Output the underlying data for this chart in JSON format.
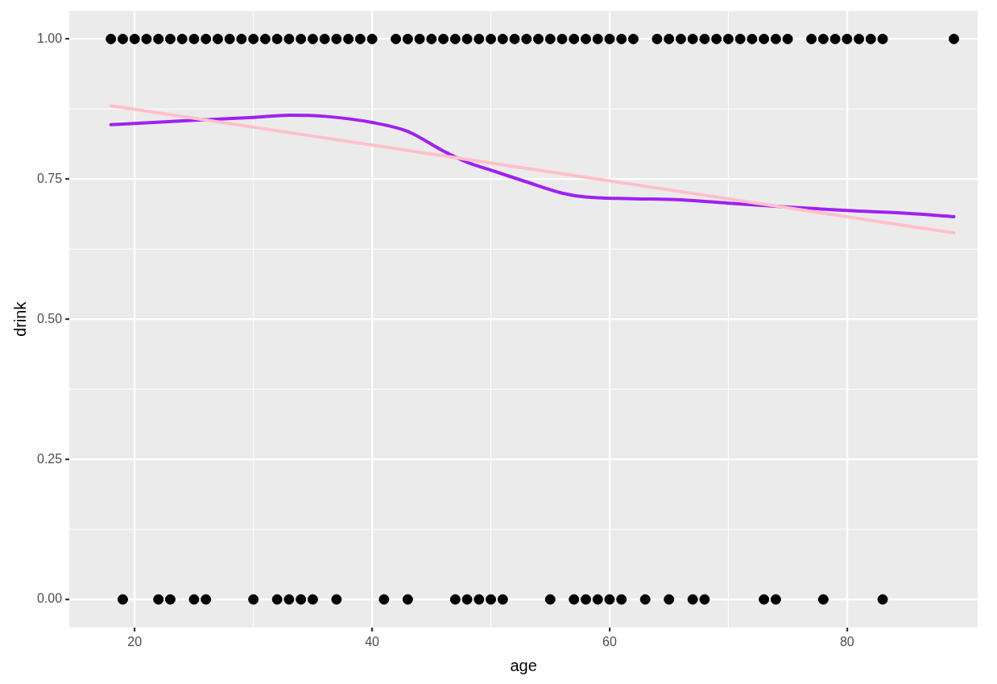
{
  "chart_data": {
    "type": "scatter",
    "xlabel": "age",
    "ylabel": "drink",
    "xlim": [
      14.5,
      91
    ],
    "ylim": [
      -0.05,
      1.05
    ],
    "xticks": [
      20,
      40,
      60,
      80
    ],
    "yticks": [
      {
        "value": 0,
        "label": "0.00"
      },
      {
        "value": 0.25,
        "label": "0.25"
      },
      {
        "value": 0.5,
        "label": "0.50"
      },
      {
        "value": 0.75,
        "label": "0.75"
      },
      {
        "value": 1,
        "label": "1.00"
      }
    ],
    "grid": true,
    "legend": false,
    "marker": "circle",
    "series": [
      {
        "type": "scatter",
        "color": "#000000",
        "x": [
          18,
          19,
          20,
          21,
          22,
          23,
          24,
          25,
          26,
          27,
          28,
          29,
          30,
          31,
          32,
          33,
          34,
          35,
          36,
          37,
          38,
          39,
          40,
          42,
          43,
          44,
          45,
          46,
          47,
          48,
          49,
          50,
          51,
          52,
          53,
          54,
          55,
          56,
          57,
          58,
          59,
          60,
          61,
          62,
          64,
          65,
          66,
          67,
          68,
          69,
          70,
          71,
          72,
          73,
          74,
          75,
          77,
          78,
          79,
          80,
          81,
          82,
          83,
          89,
          19,
          22,
          23,
          25,
          26,
          30,
          32,
          33,
          34,
          35,
          37,
          41,
          43,
          47,
          48,
          49,
          50,
          51,
          55,
          57,
          58,
          59,
          60,
          61,
          63,
          65,
          67,
          68,
          73,
          74,
          78,
          83
        ],
        "values": [
          1,
          1,
          1,
          1,
          1,
          1,
          1,
          1,
          1,
          1,
          1,
          1,
          1,
          1,
          1,
          1,
          1,
          1,
          1,
          1,
          1,
          1,
          1,
          1,
          1,
          1,
          1,
          1,
          1,
          1,
          1,
          1,
          1,
          1,
          1,
          1,
          1,
          1,
          1,
          1,
          1,
          1,
          1,
          1,
          1,
          1,
          1,
          1,
          1,
          1,
          1,
          1,
          1,
          1,
          1,
          1,
          1,
          1,
          1,
          1,
          1,
          1,
          1,
          1,
          0,
          0,
          0,
          0,
          0,
          0,
          0,
          0,
          0,
          0,
          0,
          0,
          0,
          0,
          0,
          0,
          0,
          0,
          0,
          0,
          0,
          0,
          0,
          0,
          0,
          0,
          0,
          0,
          0,
          0,
          0,
          0
        ]
      },
      {
        "type": "line",
        "color": "#ffc0cb",
        "marker": "none",
        "x": [
          18,
          89
        ],
        "values": [
          0.881,
          0.654
        ]
      },
      {
        "type": "line",
        "color": "#a020f0",
        "marker": "none",
        "x": [
          18,
          25,
          30,
          33,
          36,
          40,
          43,
          46,
          48,
          50,
          53,
          56,
          58,
          62,
          66,
          70,
          75,
          80,
          85,
          89
        ],
        "values": [
          0.847,
          0.855,
          0.86,
          0.864,
          0.862,
          0.851,
          0.835,
          0.8,
          0.78,
          0.766,
          0.745,
          0.725,
          0.718,
          0.715,
          0.713,
          0.707,
          0.7,
          0.694,
          0.689,
          0.683
        ]
      }
    ]
  }
}
